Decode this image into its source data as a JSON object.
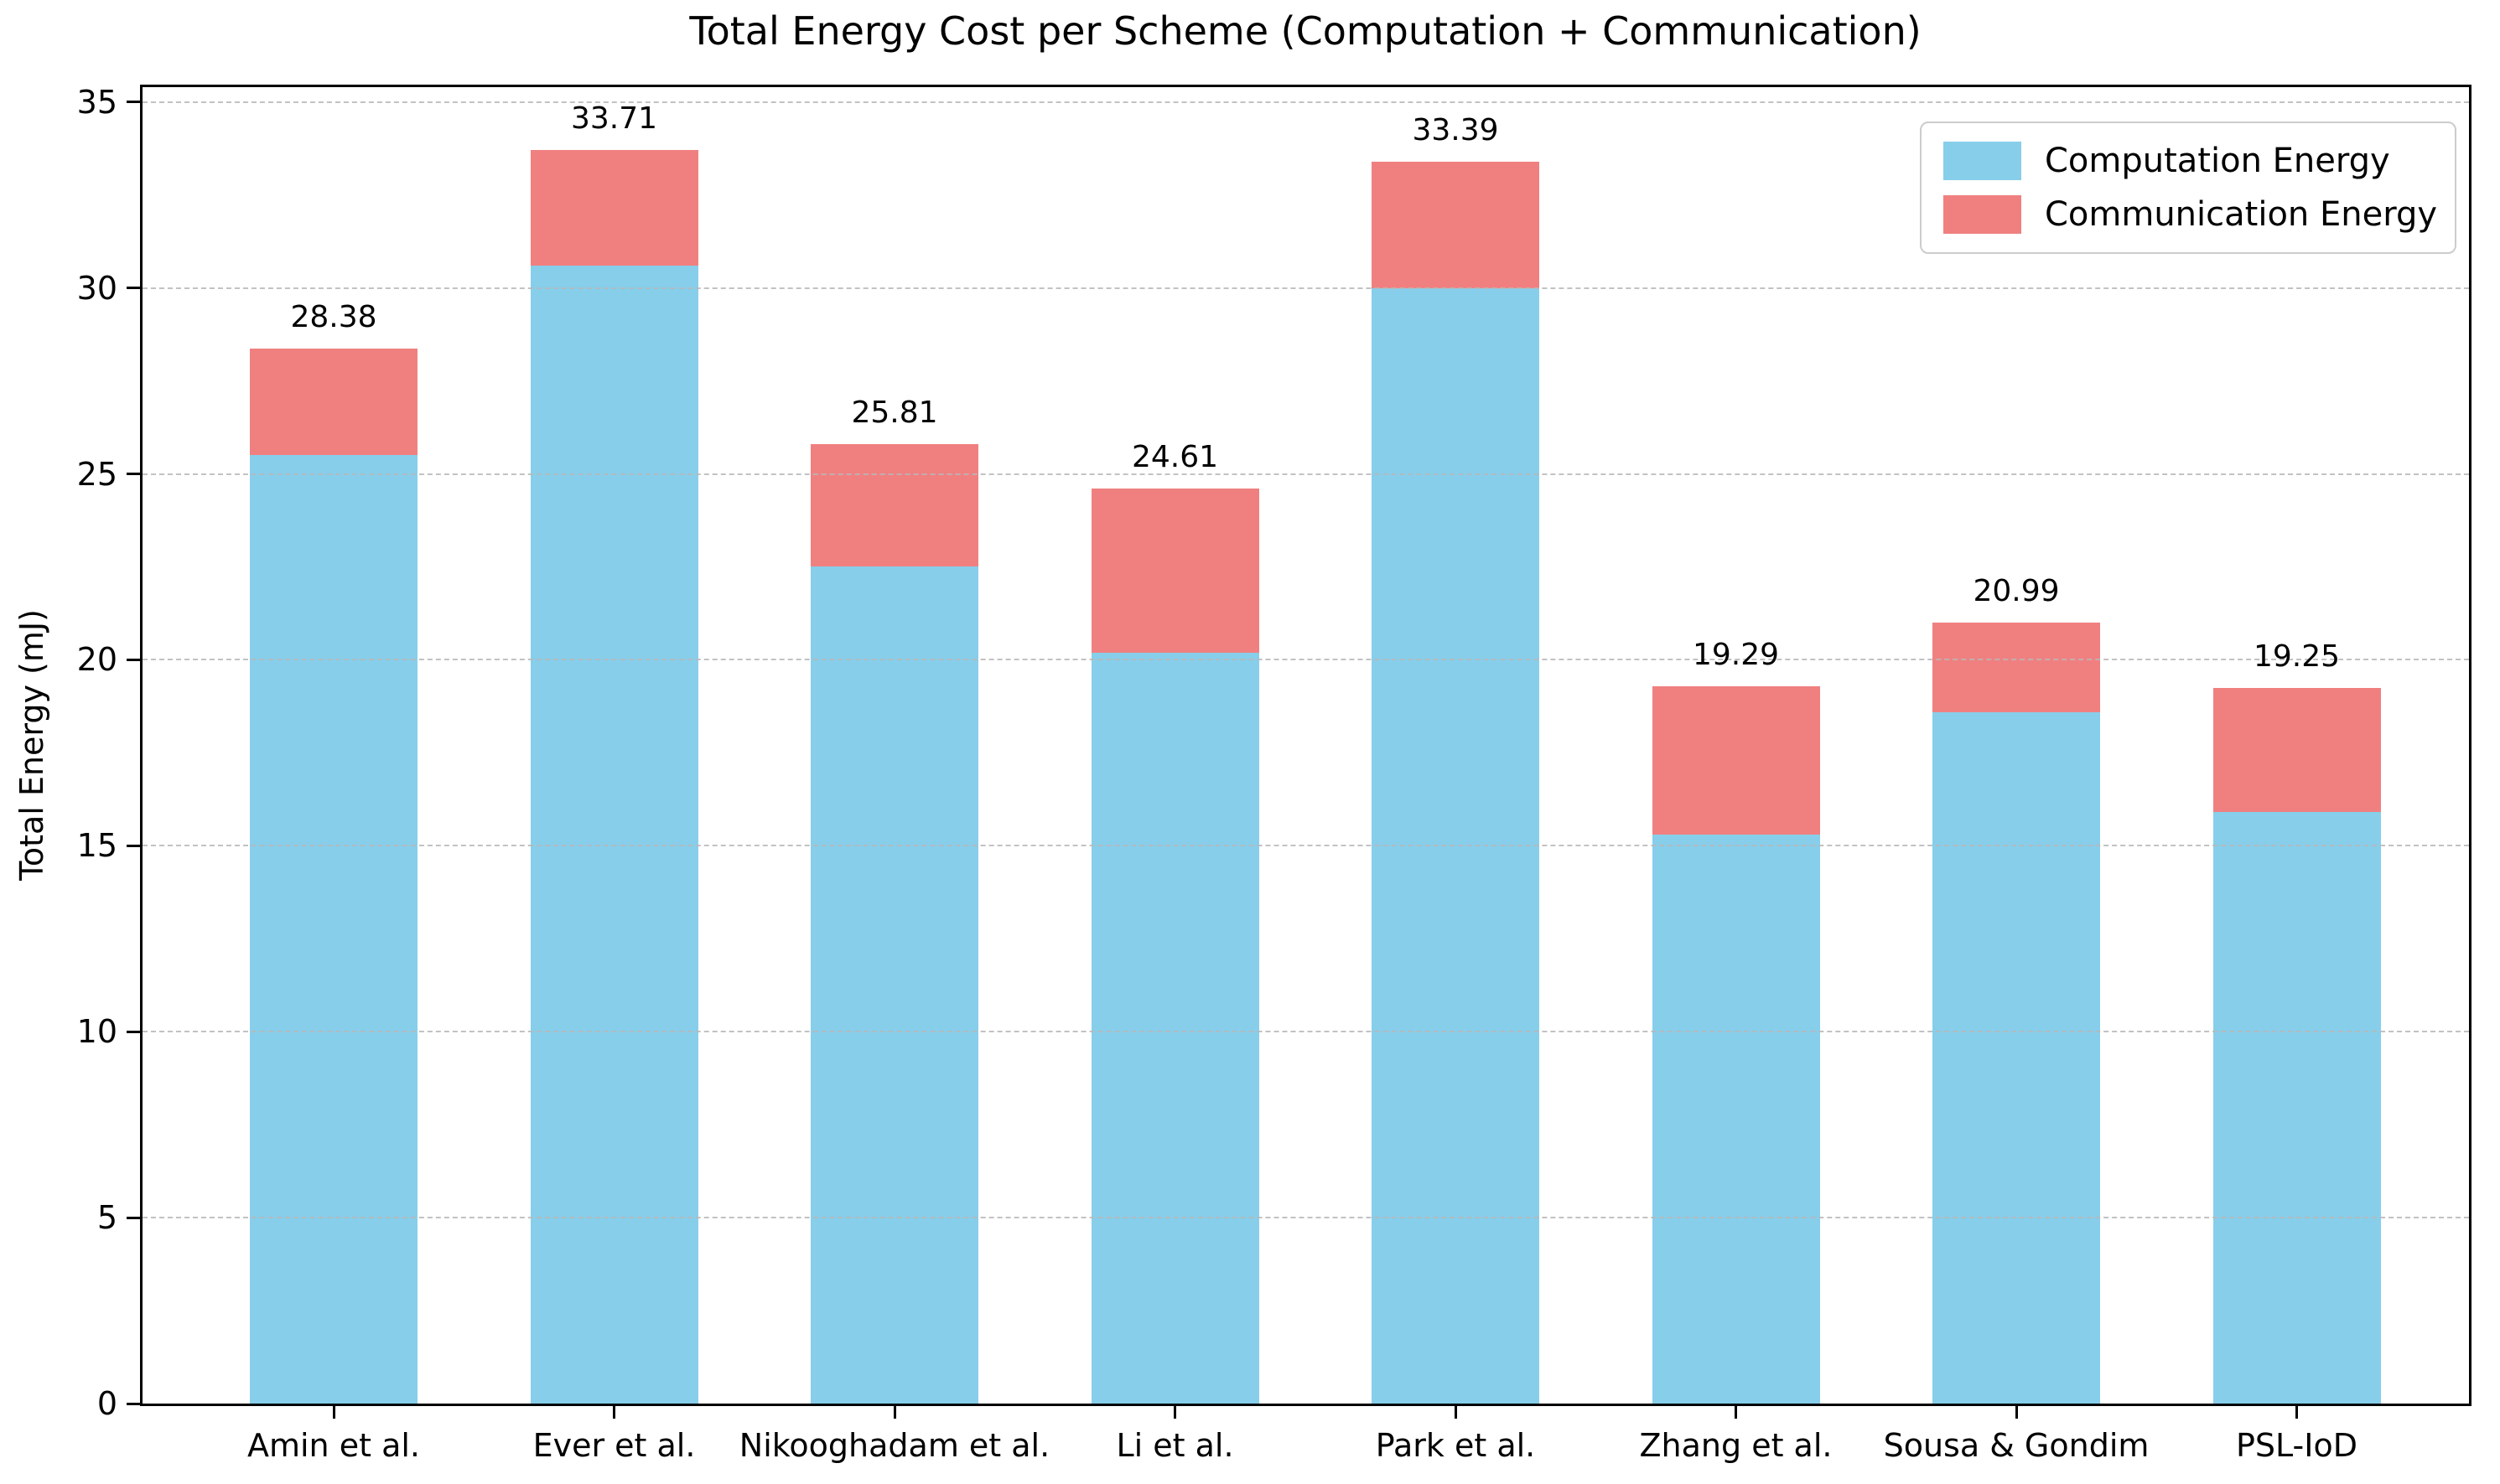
{
  "chart_data": {
    "type": "bar",
    "stacked": true,
    "title": "Total Energy Cost per Scheme (Computation + Communication)",
    "xlabel": "",
    "ylabel": "Total Energy (mJ)",
    "categories": [
      "Amin et al.",
      "Ever et al.",
      "Nikooghadam et al.",
      "Li et al.",
      "Park et al.",
      "Zhang et al.",
      "Sousa & Gondim",
      "PSL-IoD"
    ],
    "series": [
      {
        "name": "Computation Energy",
        "color": "#87CEEB",
        "values": [
          25.5,
          30.6,
          22.5,
          20.2,
          30.0,
          15.3,
          18.6,
          15.9
        ]
      },
      {
        "name": "Communication Energy",
        "color": "#F08080",
        "values": [
          2.88,
          3.11,
          3.31,
          4.41,
          3.39,
          3.99,
          2.39,
          3.35
        ]
      }
    ],
    "totals": [
      28.38,
      33.71,
      25.81,
      24.61,
      33.39,
      19.29,
      20.99,
      19.25
    ],
    "yticks": [
      0,
      5,
      10,
      15,
      20,
      25,
      30,
      35
    ],
    "ylim": [
      0,
      35.4
    ],
    "grid": "horizontal-dashed",
    "grid_color": "#b8b8b8",
    "legend_position": "upper-right",
    "background_color": "#ffffff",
    "spine_color": "#000000"
  }
}
